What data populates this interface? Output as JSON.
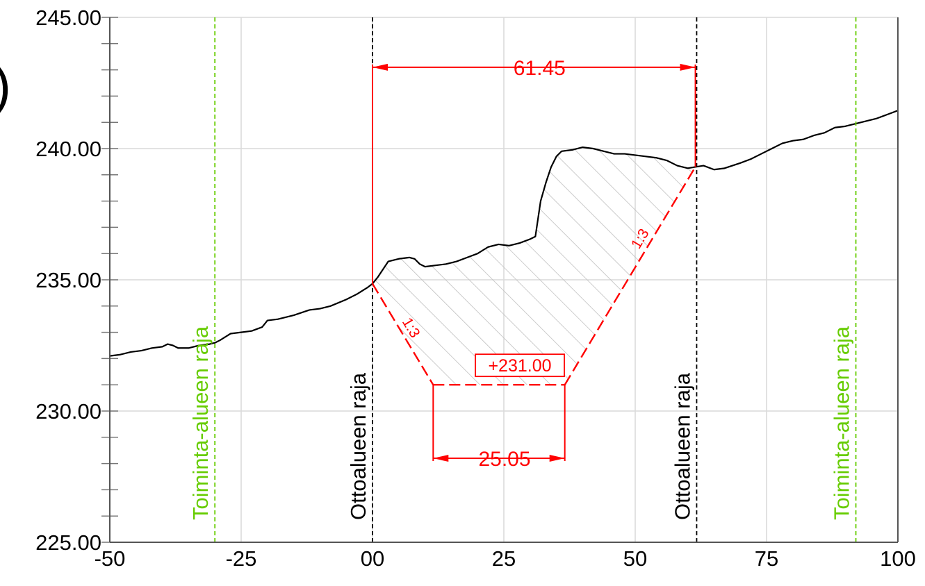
{
  "diagram": {
    "axes": {
      "x_range": [
        -50,
        100
      ],
      "y_range": [
        225,
        245
      ],
      "x_ticks": [
        {
          "value": -50,
          "label": "-50"
        },
        {
          "value": -25,
          "label": "-25"
        },
        {
          "value": 0,
          "label": "00"
        },
        {
          "value": 25,
          "label": "25"
        },
        {
          "value": 50,
          "label": "50"
        },
        {
          "value": 75,
          "label": "75"
        },
        {
          "value": 100,
          "label": "100"
        }
      ],
      "y_ticks": [
        {
          "value": 225,
          "label": "225.00"
        },
        {
          "value": 230,
          "label": "230.00"
        },
        {
          "value": 235,
          "label": "235.00"
        },
        {
          "value": 240,
          "label": "240.00"
        },
        {
          "value": 245,
          "label": "245.00"
        }
      ],
      "minor_y_step": 1,
      "grid": true
    },
    "cut_off_edge_text": ")",
    "ground_profile": [
      [
        -50,
        232.1
      ],
      [
        -48,
        232.15
      ],
      [
        -46,
        232.25
      ],
      [
        -44,
        232.3
      ],
      [
        -42,
        232.4
      ],
      [
        -40,
        232.45
      ],
      [
        -39,
        232.55
      ],
      [
        -38,
        232.5
      ],
      [
        -37,
        232.4
      ],
      [
        -35,
        232.4
      ],
      [
        -33,
        232.5
      ],
      [
        -31,
        232.55
      ],
      [
        -30,
        232.6
      ],
      [
        -29,
        232.7
      ],
      [
        -27,
        232.95
      ],
      [
        -25,
        233.0
      ],
      [
        -23,
        233.05
      ],
      [
        -21,
        233.2
      ],
      [
        -20,
        233.45
      ],
      [
        -18,
        233.5
      ],
      [
        -15,
        233.65
      ],
      [
        -12,
        233.85
      ],
      [
        -10,
        233.9
      ],
      [
        -8,
        234.0
      ],
      [
        -5,
        234.25
      ],
      [
        -3,
        234.45
      ],
      [
        -1,
        234.7
      ],
      [
        0,
        234.85
      ],
      [
        1,
        235.1
      ],
      [
        2,
        235.4
      ],
      [
        3,
        235.7
      ],
      [
        5,
        235.8
      ],
      [
        7,
        235.85
      ],
      [
        8,
        235.8
      ],
      [
        9,
        235.6
      ],
      [
        10,
        235.5
      ],
      [
        12,
        235.55
      ],
      [
        14,
        235.6
      ],
      [
        16,
        235.7
      ],
      [
        18,
        235.85
      ],
      [
        20,
        236.0
      ],
      [
        22,
        236.25
      ],
      [
        24,
        236.35
      ],
      [
        26,
        236.3
      ],
      [
        28,
        236.4
      ],
      [
        30,
        236.55
      ],
      [
        31,
        236.65
      ],
      [
        32,
        238.0
      ],
      [
        33,
        238.7
      ],
      [
        34,
        239.3
      ],
      [
        35,
        239.7
      ],
      [
        36,
        239.9
      ],
      [
        38,
        239.95
      ],
      [
        40,
        240.05
      ],
      [
        42,
        240.0
      ],
      [
        44,
        239.9
      ],
      [
        46,
        239.8
      ],
      [
        48,
        239.8
      ],
      [
        50,
        239.75
      ],
      [
        52,
        239.7
      ],
      [
        54,
        239.65
      ],
      [
        56,
        239.55
      ],
      [
        58,
        239.35
      ],
      [
        60,
        239.25
      ],
      [
        61.45,
        239.3
      ],
      [
        63,
        239.35
      ],
      [
        65,
        239.2
      ],
      [
        67,
        239.25
      ],
      [
        70,
        239.45
      ],
      [
        72,
        239.6
      ],
      [
        74,
        239.8
      ],
      [
        76,
        240.0
      ],
      [
        78,
        240.2
      ],
      [
        80,
        240.3
      ],
      [
        82,
        240.35
      ],
      [
        84,
        240.5
      ],
      [
        86,
        240.6
      ],
      [
        88,
        240.8
      ],
      [
        90,
        240.85
      ],
      [
        92,
        240.95
      ],
      [
        94,
        241.05
      ],
      [
        96,
        241.15
      ],
      [
        98,
        241.3
      ],
      [
        100,
        241.45
      ]
    ],
    "excavation": {
      "bottom_level": 231,
      "bottom_start_x": 11.55,
      "bottom_end_x": 36.6,
      "left_top": [
        0,
        234.85
      ],
      "right_top": [
        61.45,
        239.3
      ],
      "left_slope_label": "1:3",
      "right_slope_label": "1:3",
      "level_label": "+231.00"
    },
    "dimensions": {
      "top_width": {
        "from_x": 0,
        "to_x": 61.45,
        "y": 243.1,
        "label": "61.45"
      },
      "bottom_width": {
        "from_x": 11.55,
        "to_x": 36.6,
        "y": 228.2,
        "label": "25.05"
      }
    },
    "boundaries": [
      {
        "x": -30,
        "label": "Toiminta-alueen raja",
        "color": "#66cc00"
      },
      {
        "x": 0,
        "label": "Ottoalueen raja",
        "color": "#000000"
      },
      {
        "x": 61.7,
        "label": "Ottoalueen raja",
        "color": "#000000"
      },
      {
        "x": 92,
        "label": "Toiminta-alueen raja",
        "color": "#66cc00"
      }
    ],
    "colors": {
      "grid": "#d9d9d9",
      "axis": "#555555",
      "ground": "#000000",
      "excavation": "#ff0000",
      "hatch": "#bfbfbf"
    }
  }
}
